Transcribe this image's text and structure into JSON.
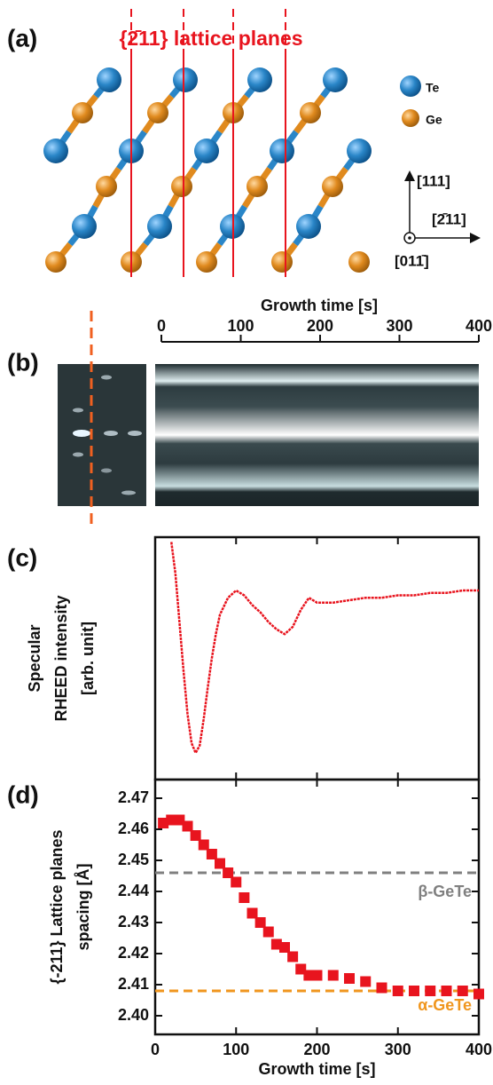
{
  "labels": [
    "(a)",
    "(b)",
    "(c)",
    "(d)"
  ],
  "lattice": {
    "title": "{2̄11} lattice planes",
    "atoms": [
      {
        "name": "Te",
        "color": "#2a86c8"
      },
      {
        "name": "Ge",
        "color": "#e08a1e"
      }
    ],
    "directions": [
      "[111]",
      "[2̄11]",
      "[011̄]"
    ]
  },
  "rheed": {
    "xlabel": "Growth time [s]",
    "xlim": [
      0,
      400
    ],
    "xticks": [
      0,
      100,
      200,
      300,
      400
    ]
  },
  "chart_data": [
    {
      "type": "line",
      "ylabel": [
        "Specular",
        "RHEED intensity",
        "[arb. unit]"
      ],
      "xlim": [
        0,
        400
      ],
      "ylim": [
        0,
        1
      ],
      "color": "#e8141e",
      "x": [
        20,
        25,
        30,
        35,
        40,
        45,
        50,
        55,
        60,
        65,
        70,
        75,
        80,
        90,
        100,
        110,
        120,
        130,
        140,
        150,
        160,
        170,
        180,
        190,
        200,
        220,
        240,
        260,
        280,
        300,
        320,
        340,
        360,
        380,
        400
      ],
      "values": [
        0.98,
        0.85,
        0.65,
        0.45,
        0.27,
        0.15,
        0.11,
        0.14,
        0.25,
        0.38,
        0.5,
        0.6,
        0.68,
        0.75,
        0.78,
        0.76,
        0.72,
        0.69,
        0.65,
        0.62,
        0.6,
        0.63,
        0.7,
        0.75,
        0.73,
        0.73,
        0.74,
        0.75,
        0.75,
        0.76,
        0.76,
        0.77,
        0.77,
        0.78,
        0.78
      ]
    },
    {
      "type": "scatter",
      "xlabel": "Growth time [s]",
      "ylabel": [
        "{-211} Lattice planes",
        "spacing [Å]"
      ],
      "xlim": [
        0,
        400
      ],
      "xticks": [
        0,
        100,
        200,
        300,
        400
      ],
      "ylim": [
        2.394,
        2.476
      ],
      "yticks": [
        {
          "value": 2.4,
          "label": "2.40"
        },
        2.41,
        2.42,
        2.43,
        2.44,
        2.45,
        2.46,
        2.47
      ],
      "color": "#e8141e",
      "x": [
        10,
        20,
        30,
        40,
        50,
        60,
        70,
        80,
        90,
        100,
        110,
        120,
        130,
        140,
        150,
        160,
        170,
        180,
        190,
        200,
        220,
        240,
        260,
        280,
        300,
        320,
        340,
        360,
        380,
        400
      ],
      "values": [
        2.462,
        2.463,
        2.463,
        2.461,
        2.458,
        2.455,
        2.452,
        2.449,
        2.446,
        2.443,
        2.438,
        2.433,
        2.43,
        2.427,
        2.423,
        2.422,
        2.419,
        2.415,
        2.413,
        2.413,
        2.413,
        2.412,
        2.411,
        2.409,
        2.408,
        2.408,
        2.408,
        2.408,
        2.408,
        2.407
      ],
      "reference_lines": [
        {
          "name": "β-GeTe",
          "value": 2.446,
          "color": "#808080"
        },
        {
          "name": "α-GeTe",
          "value": 2.408,
          "color": "#f0961e"
        }
      ]
    }
  ]
}
